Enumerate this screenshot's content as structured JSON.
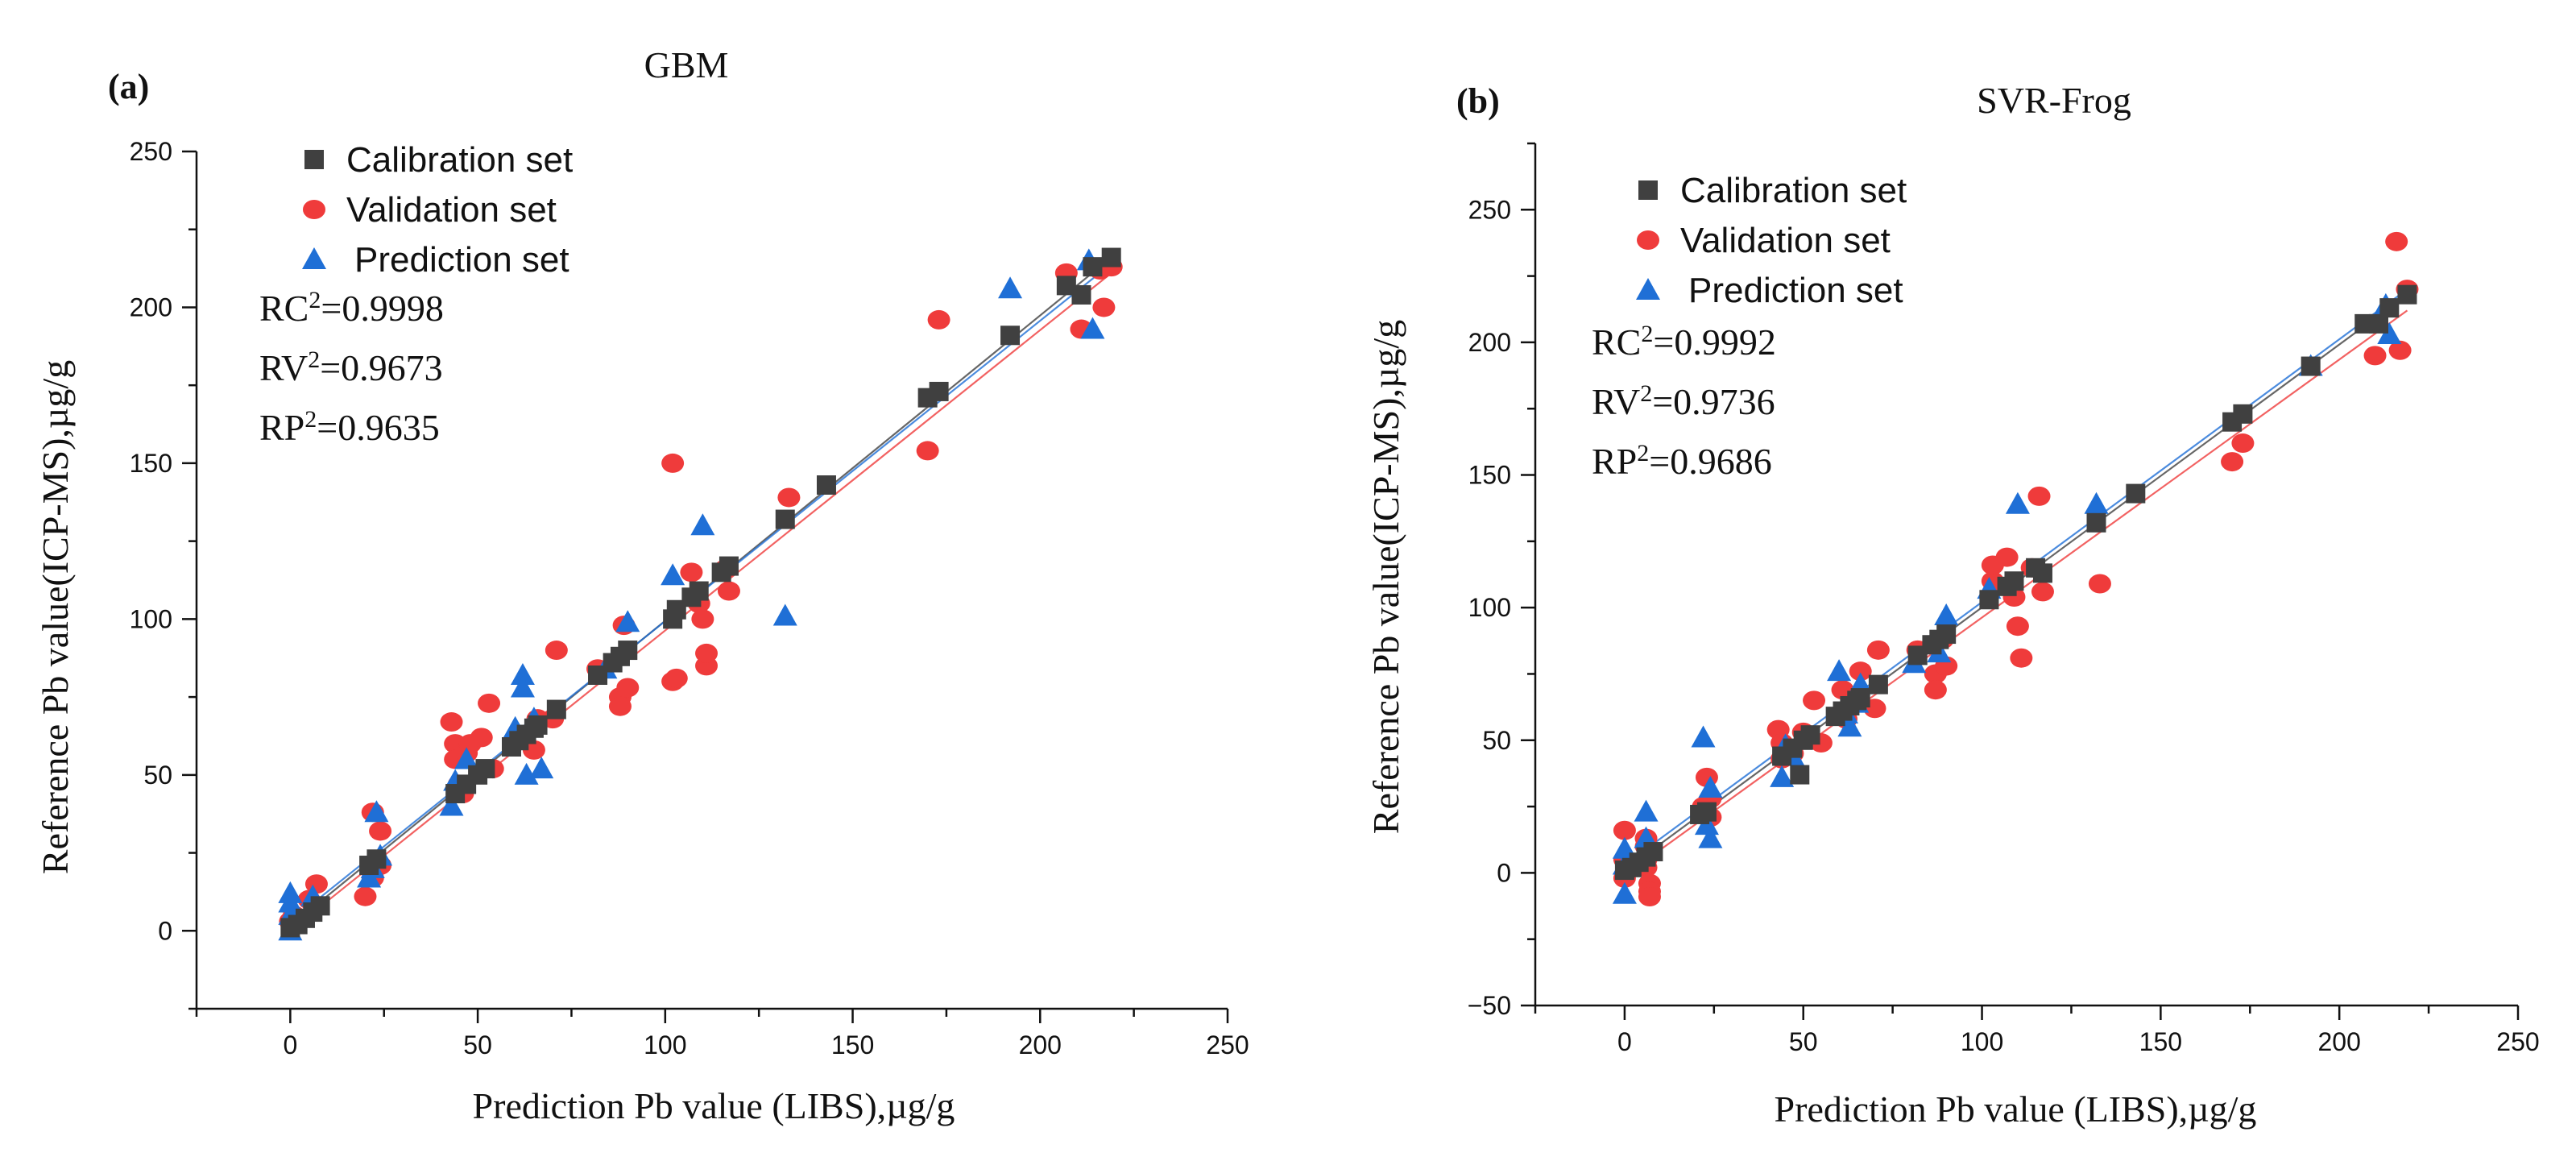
{
  "chart_data": [
    {
      "type": "scatter",
      "panel_label": "(a)",
      "title": "GBM",
      "xlabel": "Prediction Pb value (LIBS),µg/g",
      "ylabel": "Reference  Pb value(ICP-MS),µg/g",
      "xlim": [
        -25,
        250
      ],
      "ylim": [
        -25,
        250
      ],
      "xticks": [
        0,
        50,
        100,
        150,
        200,
        250
      ],
      "yticks": [
        0,
        50,
        100,
        150,
        200,
        250
      ],
      "stats": [
        {
          "label": "RC",
          "sup": "2",
          "value": "=0.9998"
        },
        {
          "label": "RV",
          "sup": "2",
          "value": "=0.9673"
        },
        {
          "label": "RP",
          "sup": "2",
          "value": "=0.9635"
        }
      ],
      "fits": [
        {
          "name": "Calibration set",
          "color": "#404040",
          "x0": 0,
          "y0": 1.5,
          "x1": 219,
          "y1": 216
        },
        {
          "name": "Validation set",
          "color": "#ef3b3b",
          "x0": 0,
          "y0": 0,
          "x1": 219,
          "y1": 211
        },
        {
          "name": "Prediction set",
          "color": "#1f6fd6",
          "x0": 0,
          "y0": 3,
          "x1": 219,
          "y1": 214
        }
      ],
      "series": [
        {
          "name": "Calibration set",
          "marker": "square",
          "color": "#404040",
          "points": [
            [
              0,
              1
            ],
            [
              2,
              2
            ],
            [
              4,
              4
            ],
            [
              6,
              6
            ],
            [
              8,
              8
            ],
            [
              21,
              21
            ],
            [
              23,
              23
            ],
            [
              44,
              44
            ],
            [
              47,
              47
            ],
            [
              50,
              50
            ],
            [
              52,
              52
            ],
            [
              59,
              59
            ],
            [
              61,
              61
            ],
            [
              63,
              63
            ],
            [
              65,
              65
            ],
            [
              66,
              66
            ],
            [
              71,
              71
            ],
            [
              82,
              82
            ],
            [
              86,
              86
            ],
            [
              88,
              88
            ],
            [
              90,
              90
            ],
            [
              102,
              100
            ],
            [
              103,
              103
            ],
            [
              107,
              107
            ],
            [
              109,
              109
            ],
            [
              115,
              115
            ],
            [
              117,
              117
            ],
            [
              132,
              132
            ],
            [
              143,
              143
            ],
            [
              170,
              171
            ],
            [
              173,
              173
            ],
            [
              192,
              191
            ],
            [
              207,
              207
            ],
            [
              211,
              204
            ],
            [
              214,
              213
            ],
            [
              219,
              216
            ]
          ]
        },
        {
          "name": "Validation set",
          "marker": "circle",
          "color": "#ef3b3b",
          "points": [
            [
              0,
              3
            ],
            [
              1,
              5
            ],
            [
              5,
              10
            ],
            [
              7,
              15
            ],
            [
              20,
              11
            ],
            [
              22,
              17
            ],
            [
              24,
              21
            ],
            [
              22,
              38
            ],
            [
              24,
              32
            ],
            [
              43,
              67
            ],
            [
              44,
              60
            ],
            [
              44,
              55
            ],
            [
              45,
              47
            ],
            [
              46,
              44
            ],
            [
              47,
              57
            ],
            [
              48,
              60
            ],
            [
              51,
              62
            ],
            [
              53,
              73
            ],
            [
              54,
              52
            ],
            [
              65,
              58
            ],
            [
              66,
              68
            ],
            [
              70,
              68
            ],
            [
              71,
              90
            ],
            [
              82,
              84
            ],
            [
              88,
              75
            ],
            [
              88,
              72
            ],
            [
              89,
              98
            ],
            [
              90,
              78
            ],
            [
              102,
              150
            ],
            [
              102,
              80
            ],
            [
              103,
              81
            ],
            [
              107,
              115
            ],
            [
              109,
              105
            ],
            [
              110,
              100
            ],
            [
              111,
              85
            ],
            [
              111,
              89
            ],
            [
              116,
              116
            ],
            [
              117,
              109
            ],
            [
              133,
              139
            ],
            [
              170,
              154
            ],
            [
              173,
              196
            ],
            [
              207,
              211
            ],
            [
              211,
              193
            ],
            [
              216,
              212
            ],
            [
              217,
              200
            ],
            [
              219,
              213
            ]
          ]
        },
        {
          "name": "Prediction set",
          "marker": "triangle",
          "color": "#1f6fd6",
          "points": [
            [
              0,
              0
            ],
            [
              0,
              5
            ],
            [
              0,
              9
            ],
            [
              0,
              12
            ],
            [
              6,
              11
            ],
            [
              21,
              17
            ],
            [
              22,
              20
            ],
            [
              23,
              38
            ],
            [
              24,
              24
            ],
            [
              43,
              40
            ],
            [
              44,
              48
            ],
            [
              47,
              55
            ],
            [
              60,
              65
            ],
            [
              62,
              82
            ],
            [
              62,
              78
            ],
            [
              63,
              50
            ],
            [
              65,
              68
            ],
            [
              67,
              52
            ],
            [
              84,
              84
            ],
            [
              90,
              99
            ],
            [
              102,
              114
            ],
            [
              110,
              130
            ],
            [
              132,
              101
            ],
            [
              192,
              206
            ],
            [
              213,
              215
            ],
            [
              214,
              193
            ]
          ]
        }
      ]
    },
    {
      "type": "scatter",
      "panel_label": "(b)",
      "title": "SVR-Frog",
      "xlabel": "Prediction Pb value (LIBS),µg/g",
      "ylabel": "Reference  Pb value(ICP-MS),µg/g",
      "xlim": [
        -25,
        250
      ],
      "ylim": [
        -50,
        275
      ],
      "xticks": [
        0,
        50,
        100,
        150,
        200,
        250
      ],
      "yticks": [
        -50,
        0,
        50,
        100,
        150,
        200,
        250
      ],
      "stats": [
        {
          "label": "RC",
          "sup": "2",
          "value": "=0.9992"
        },
        {
          "label": "RV",
          "sup": "2",
          "value": "=0.9736"
        },
        {
          "label": "RP",
          "sup": "2",
          "value": "=0.9686"
        }
      ],
      "fits": [
        {
          "name": "Calibration set",
          "color": "#404040",
          "x0": 0,
          "y0": 1,
          "x1": 219,
          "y1": 218
        },
        {
          "name": "Validation set",
          "color": "#ef3b3b",
          "x0": 0,
          "y0": -1,
          "x1": 219,
          "y1": 212
        },
        {
          "name": "Prediction set",
          "color": "#1f6fd6",
          "x0": 0,
          "y0": 3,
          "x1": 219,
          "y1": 220
        }
      ],
      "series": [
        {
          "name": "Calibration set",
          "marker": "square",
          "color": "#404040",
          "points": [
            [
              0,
              1
            ],
            [
              2,
              2
            ],
            [
              4,
              4
            ],
            [
              6,
              6
            ],
            [
              8,
              8
            ],
            [
              21,
              22
            ],
            [
              23,
              23
            ],
            [
              44,
              44
            ],
            [
              47,
              47
            ],
            [
              49,
              37
            ],
            [
              50,
              50
            ],
            [
              52,
              52
            ],
            [
              59,
              59
            ],
            [
              61,
              61
            ],
            [
              63,
              63
            ],
            [
              65,
              65
            ],
            [
              66,
              66
            ],
            [
              71,
              71
            ],
            [
              82,
              82
            ],
            [
              86,
              86
            ],
            [
              88,
              88
            ],
            [
              90,
              90
            ],
            [
              102,
              103
            ],
            [
              107,
              108
            ],
            [
              109,
              110
            ],
            [
              115,
              115
            ],
            [
              117,
              113
            ],
            [
              132,
              132
            ],
            [
              143,
              143
            ],
            [
              170,
              170
            ],
            [
              173,
              173
            ],
            [
              192,
              191
            ],
            [
              207,
              207
            ],
            [
              211,
              207
            ],
            [
              214,
              213
            ],
            [
              219,
              218
            ]
          ]
        },
        {
          "name": "Validation set",
          "marker": "circle",
          "color": "#ef3b3b",
          "points": [
            [
              0,
              16
            ],
            [
              0,
              5
            ],
            [
              0,
              -2
            ],
            [
              6,
              13
            ],
            [
              6,
              10
            ],
            [
              6,
              5
            ],
            [
              6,
              2
            ],
            [
              7,
              -4
            ],
            [
              7,
              -7
            ],
            [
              7,
              -9
            ],
            [
              22,
              25
            ],
            [
              23,
              36
            ],
            [
              24,
              28
            ],
            [
              24,
              21
            ],
            [
              43,
              54
            ],
            [
              44,
              43
            ],
            [
              44,
              49
            ],
            [
              47,
              45
            ],
            [
              50,
              53
            ],
            [
              53,
              65
            ],
            [
              55,
              49
            ],
            [
              61,
              69
            ],
            [
              62,
              58
            ],
            [
              65,
              67
            ],
            [
              66,
              76
            ],
            [
              70,
              62
            ],
            [
              71,
              84
            ],
            [
              82,
              84
            ],
            [
              87,
              75
            ],
            [
              87,
              69
            ],
            [
              89,
              88
            ],
            [
              90,
              78
            ],
            [
              103,
              110
            ],
            [
              103,
              116
            ],
            [
              107,
              119
            ],
            [
              109,
              104
            ],
            [
              110,
              93
            ],
            [
              111,
              81
            ],
            [
              114,
              115
            ],
            [
              116,
              142
            ],
            [
              117,
              106
            ],
            [
              133,
              109
            ],
            [
              170,
              155
            ],
            [
              173,
              162
            ],
            [
              210,
              195
            ],
            [
              216,
              238
            ],
            [
              217,
              197
            ],
            [
              219,
              220
            ]
          ]
        },
        {
          "name": "Prediction set",
          "marker": "triangle",
          "color": "#1f6fd6",
          "points": [
            [
              0,
              -8
            ],
            [
              0,
              3
            ],
            [
              0,
              9
            ],
            [
              6,
              23
            ],
            [
              6,
              13
            ],
            [
              22,
              51
            ],
            [
              23,
              18
            ],
            [
              24,
              13
            ],
            [
              24,
              32
            ],
            [
              44,
              36
            ],
            [
              45,
              48
            ],
            [
              47,
              44
            ],
            [
              60,
              76
            ],
            [
              62,
              60
            ],
            [
              63,
              55
            ],
            [
              65,
              64
            ],
            [
              66,
              71
            ],
            [
              81,
              79
            ],
            [
              88,
              83
            ],
            [
              90,
              97
            ],
            [
              102,
              107
            ],
            [
              110,
              139
            ],
            [
              132,
              139
            ],
            [
              192,
              191
            ],
            [
              213,
              214
            ],
            [
              214,
              203
            ]
          ]
        }
      ]
    }
  ]
}
